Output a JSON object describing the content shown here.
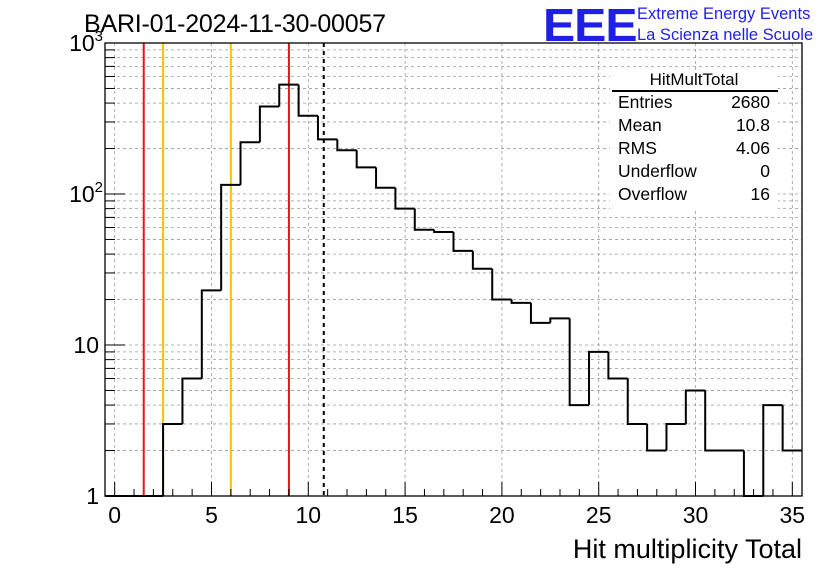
{
  "title": "BARI-01-2024-11-30-00057",
  "logo": {
    "text": "EEE",
    "line1": "Extreme Energy Events",
    "line2": "La Scienza nelle Scuole"
  },
  "colors": {
    "histogram": "#000000",
    "red_lines": "#e8141c",
    "yellow_lines": "#f5c400",
    "logo": "#1f1fe6"
  },
  "stats": {
    "title": "HitMultTotal",
    "rows": [
      {
        "key": "Entries",
        "value": "2680"
      },
      {
        "key": "Mean",
        "value": "10.8"
      },
      {
        "key": "RMS",
        "value": "4.06"
      },
      {
        "key": "Underflow",
        "value": "0"
      },
      {
        "key": "Overflow",
        "value": "16"
      }
    ]
  },
  "chart_data": {
    "type": "histogram",
    "xlabel": "Hit multiplicity Total",
    "ylabel": "",
    "xlim": [
      -0.5,
      35.5
    ],
    "ylim": [
      1,
      1000
    ],
    "yscale": "log",
    "grid": true,
    "x_ticks": [
      0,
      5,
      10,
      15,
      20,
      25,
      30,
      35
    ],
    "x_tick_labels": [
      "0",
      "5",
      "10",
      "15",
      "20",
      "25",
      "30",
      "35"
    ],
    "y_ticks": [
      1,
      10,
      100,
      1000
    ],
    "y_tick_labels": [
      "1",
      "10",
      "10^2",
      "10^3"
    ],
    "bin_width": 1,
    "bin_low_edges": [
      -0.5,
      0.5,
      1.5,
      2.5,
      3.5,
      4.5,
      5.5,
      6.5,
      7.5,
      8.5,
      9.5,
      10.5,
      11.5,
      12.5,
      13.5,
      14.5,
      15.5,
      16.5,
      17.5,
      18.5,
      19.5,
      20.5,
      21.5,
      22.5,
      23.5,
      24.5,
      25.5,
      26.5,
      27.5,
      28.5,
      29.5,
      30.5,
      31.5,
      32.5,
      33.5,
      34.5
    ],
    "counts": [
      0,
      0,
      0,
      3,
      6,
      23,
      115,
      220,
      380,
      530,
      330,
      230,
      195,
      150,
      110,
      80,
      58,
      56,
      42,
      32,
      20,
      19,
      14,
      15,
      4,
      9,
      6,
      3,
      2,
      3,
      5,
      2,
      2,
      0,
      4,
      2
    ],
    "vertical_lines": [
      {
        "x": 1.5,
        "color": "red",
        "style": "solid"
      },
      {
        "x": 2.5,
        "color": "yellow",
        "style": "solid"
      },
      {
        "x": 6.0,
        "color": "yellow",
        "style": "solid"
      },
      {
        "x": 9.0,
        "color": "red",
        "style": "solid"
      },
      {
        "x": 10.8,
        "color": "black",
        "style": "dashed"
      }
    ]
  }
}
